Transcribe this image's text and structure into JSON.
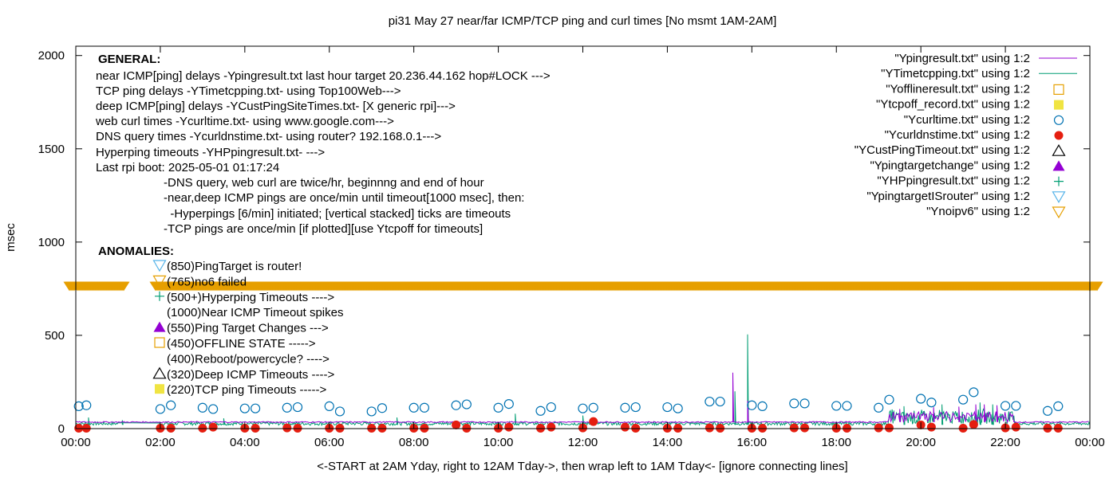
{
  "chart_data": {
    "type": "line",
    "title": "pi31 May 27  near/far ICMP/TCP ping and curl times [No msmt 1AM-2AM]",
    "xlabel": "<-START at 2AM Yday, right to 12AM Tday->, then wrap left to 1AM Tday<- [ignore connecting lines]",
    "ylabel": "msec",
    "xlim": [
      0,
      24
    ],
    "ylim": [
      0,
      2050
    ],
    "x_ticks": [
      {
        "v": 0,
        "label": "00:00"
      },
      {
        "v": 2,
        "label": "02:00"
      },
      {
        "v": 4,
        "label": "04:00"
      },
      {
        "v": 6,
        "label": "06:00"
      },
      {
        "v": 8,
        "label": "08:00"
      },
      {
        "v": 10,
        "label": "10:00"
      },
      {
        "v": 12,
        "label": "12:00"
      },
      {
        "v": 14,
        "label": "14:00"
      },
      {
        "v": 16,
        "label": "16:00"
      },
      {
        "v": 18,
        "label": "18:00"
      },
      {
        "v": 20,
        "label": "20:00"
      },
      {
        "v": 22,
        "label": "22:00"
      },
      {
        "v": 24,
        "label": "00:00"
      }
    ],
    "y_ticks": [
      {
        "v": 0,
        "label": "0"
      },
      {
        "v": 500,
        "label": "500"
      },
      {
        "v": 1000,
        "label": "1000"
      },
      {
        "v": 1500,
        "label": "1500"
      },
      {
        "v": 2000,
        "label": "2000"
      }
    ],
    "grid": false,
    "legend_position": "top-right",
    "colors": {
      "pingresult": "#9400d3",
      "timetcpping": "#009e73",
      "offline": "#e69f00",
      "tcpoff": "#f0e442",
      "curltime": "#0072b2",
      "curldns": "#e51e10",
      "custtimeout": "#000000",
      "targetchange": "#9400d3",
      "hpping": "#009e73",
      "router": "#56b4e9",
      "noipv6": "#e69f00"
    },
    "legend": [
      {
        "label": "\"Ypingresult.txt\" using 1:2",
        "style": "line",
        "color": "#9400d3"
      },
      {
        "label": "\"YTimetcpping.txt\" using 1:2",
        "style": "line",
        "color": "#009e73"
      },
      {
        "label": "\"Yofflineresult.txt\" using 1:2",
        "style": "open-square",
        "color": "#e69f00"
      },
      {
        "label": "\"Ytcpoff_record.txt\" using 1:2",
        "style": "filled-square",
        "color": "#f0e442"
      },
      {
        "label": "\"Ycurltime.txt\" using 1:2",
        "style": "open-circle",
        "color": "#0072b2"
      },
      {
        "label": "\"Ycurldnstime.txt\" using 1:2",
        "style": "filled-circle",
        "color": "#e51e10"
      },
      {
        "label": "\"YCustPingTimeout.txt\" using 1:2",
        "style": "open-triangle",
        "color": "#000000"
      },
      {
        "label": "\"Ypingtargetchange\" using 1:2",
        "style": "filled-triangle",
        "color": "#9400d3"
      },
      {
        "label": "\"YHPpingresult.txt\" using 1:2",
        "style": "plus",
        "color": "#009e73"
      },
      {
        "label": "\"YpingtargetISrouter\" using 1:2",
        "style": "open-down-triangle",
        "color": "#56b4e9"
      },
      {
        "label": "\"Ynoipv6\" using 1:2",
        "style": "open-down-triangle",
        "color": "#e69f00"
      }
    ],
    "general_heading": "GENERAL:",
    "general_lines": [
      "near ICMP[ping] delays -Ypingresult.txt last hour target 20.236.44.162 hop#LOCK --->",
      "TCP ping delays -YTimetcpping.txt- using Top100Web--->",
      "deep ICMP[ping] delays -YCustPingSiteTimes.txt- [X generic rpi]--->",
      "web curl times -Ycurltime.txt- using www.google.com--->",
      "DNS query times -Ycurldnstime.txt- using router? 192.168.0.1--->",
      "Hyperping timeouts -YHPpingresult.txt- --->",
      "Last rpi boot: 2025-05-01 01:17:24"
    ],
    "notes": [
      "-DNS query, web curl are twice/hr, beginnng and end of hour",
      "-near,deep ICMP pings are once/min until timeout[1000 msec], then:",
      "  -Hyperpings [6/min] initiated; [vertical stacked] ticks are timeouts",
      "-TCP pings are once/min [if plotted][use Ytcpoff for timeouts]"
    ],
    "anomalies_heading": "ANOMALIES:",
    "anomalies": [
      {
        "text": "(850)PingTarget is router!",
        "marker": "open-down-triangle",
        "color": "#56b4e9"
      },
      {
        "text": "(765)no6 failed",
        "marker": "open-down-triangle",
        "color": "#e69f00"
      },
      {
        "text": "(500+)Hyperping Timeouts ---->",
        "marker": "plus",
        "color": "#009e73"
      },
      {
        "text": "(1000)Near ICMP Timeout spikes",
        "marker": "none",
        "color": "#9400d3"
      },
      {
        "text": "(550)Ping Target Changes --->",
        "marker": "filled-triangle",
        "color": "#9400d3"
      },
      {
        "text": "(450)OFFLINE STATE ----->",
        "marker": "open-square",
        "color": "#e69f00"
      },
      {
        "text": "(400)Reboot/powercycle? ---->",
        "marker": "none",
        "color": "#000000"
      },
      {
        "text": "(320)Deep ICMP Timeouts ---->",
        "marker": "open-triangle",
        "color": "#000000"
      },
      {
        "text": "(220)TCP ping Timeouts ----->",
        "marker": "filled-square",
        "color": "#f0e442"
      }
    ],
    "noipv6_band": {
      "y": 765,
      "x_start": 0,
      "x_end": 24
    },
    "curl_time_points": [
      {
        "x": 0.07,
        "y": 120
      },
      {
        "x": 0.25,
        "y": 125
      },
      {
        "x": 2.0,
        "y": 105
      },
      {
        "x": 2.25,
        "y": 125
      },
      {
        "x": 3.0,
        "y": 112
      },
      {
        "x": 3.25,
        "y": 105
      },
      {
        "x": 4.0,
        "y": 108
      },
      {
        "x": 4.25,
        "y": 108
      },
      {
        "x": 5.0,
        "y": 112
      },
      {
        "x": 5.25,
        "y": 115
      },
      {
        "x": 6.0,
        "y": 120
      },
      {
        "x": 6.25,
        "y": 92
      },
      {
        "x": 7.0,
        "y": 92
      },
      {
        "x": 7.25,
        "y": 110
      },
      {
        "x": 8.0,
        "y": 112
      },
      {
        "x": 8.25,
        "y": 112
      },
      {
        "x": 9.0,
        "y": 125
      },
      {
        "x": 9.25,
        "y": 130
      },
      {
        "x": 10.0,
        "y": 112
      },
      {
        "x": 10.25,
        "y": 132
      },
      {
        "x": 11.0,
        "y": 95
      },
      {
        "x": 11.25,
        "y": 115
      },
      {
        "x": 12.0,
        "y": 108
      },
      {
        "x": 12.25,
        "y": 112
      },
      {
        "x": 13.0,
        "y": 112
      },
      {
        "x": 13.25,
        "y": 115
      },
      {
        "x": 14.0,
        "y": 115
      },
      {
        "x": 14.25,
        "y": 108
      },
      {
        "x": 15.0,
        "y": 145
      },
      {
        "x": 15.25,
        "y": 145
      },
      {
        "x": 16.0,
        "y": 125
      },
      {
        "x": 16.25,
        "y": 120
      },
      {
        "x": 17.0,
        "y": 135
      },
      {
        "x": 17.25,
        "y": 135
      },
      {
        "x": 18.0,
        "y": 122
      },
      {
        "x": 18.25,
        "y": 122
      },
      {
        "x": 19.0,
        "y": 112
      },
      {
        "x": 19.25,
        "y": 155
      },
      {
        "x": 20.0,
        "y": 160
      },
      {
        "x": 20.25,
        "y": 140
      },
      {
        "x": 21.0,
        "y": 155
      },
      {
        "x": 21.25,
        "y": 195
      },
      {
        "x": 22.0,
        "y": 122
      },
      {
        "x": 22.25,
        "y": 122
      },
      {
        "x": 23.0,
        "y": 95
      },
      {
        "x": 23.25,
        "y": 120
      }
    ],
    "curl_dns_points": [
      {
        "x": 0.07,
        "y": 2
      },
      {
        "x": 0.25,
        "y": 2
      },
      {
        "x": 2.0,
        "y": 2
      },
      {
        "x": 2.25,
        "y": 2
      },
      {
        "x": 3.0,
        "y": 2
      },
      {
        "x": 3.25,
        "y": 8
      },
      {
        "x": 4.0,
        "y": 2
      },
      {
        "x": 4.25,
        "y": 2
      },
      {
        "x": 5.0,
        "y": 4
      },
      {
        "x": 5.25,
        "y": 2
      },
      {
        "x": 6.0,
        "y": 2
      },
      {
        "x": 6.25,
        "y": 2
      },
      {
        "x": 7.0,
        "y": 2
      },
      {
        "x": 7.25,
        "y": 2
      },
      {
        "x": 8.0,
        "y": 2
      },
      {
        "x": 8.25,
        "y": 2
      },
      {
        "x": 9.0,
        "y": 20
      },
      {
        "x": 9.25,
        "y": 2
      },
      {
        "x": 10.0,
        "y": 2
      },
      {
        "x": 10.25,
        "y": 8
      },
      {
        "x": 11.0,
        "y": 2
      },
      {
        "x": 11.25,
        "y": 8
      },
      {
        "x": 12.0,
        "y": 4
      },
      {
        "x": 12.25,
        "y": 38
      },
      {
        "x": 13.0,
        "y": 8
      },
      {
        "x": 13.25,
        "y": 2
      },
      {
        "x": 14.0,
        "y": 2
      },
      {
        "x": 14.25,
        "y": 2
      },
      {
        "x": 15.0,
        "y": 4
      },
      {
        "x": 15.25,
        "y": 2
      },
      {
        "x": 16.0,
        "y": 2
      },
      {
        "x": 16.25,
        "y": 2
      },
      {
        "x": 17.0,
        "y": 4
      },
      {
        "x": 17.25,
        "y": 4
      },
      {
        "x": 18.0,
        "y": 2
      },
      {
        "x": 18.25,
        "y": 2
      },
      {
        "x": 19.0,
        "y": 4
      },
      {
        "x": 19.25,
        "y": 4
      },
      {
        "x": 20.0,
        "y": 20
      },
      {
        "x": 20.25,
        "y": 8
      },
      {
        "x": 21.0,
        "y": 2
      },
      {
        "x": 21.25,
        "y": 22
      },
      {
        "x": 22.0,
        "y": 4
      },
      {
        "x": 22.25,
        "y": 8
      },
      {
        "x": 23.0,
        "y": 2
      },
      {
        "x": 23.25,
        "y": 2
      }
    ],
    "ping_spikes": [
      {
        "x": 15.55,
        "y": 300
      },
      {
        "x": 15.9,
        "y": 150
      },
      {
        "x": 19.5,
        "y": 105
      },
      {
        "x": 20.3,
        "y": 115
      },
      {
        "x": 20.9,
        "y": 118
      },
      {
        "x": 21.3,
        "y": 130
      },
      {
        "x": 21.5,
        "y": 130
      },
      {
        "x": 21.8,
        "y": 125
      }
    ],
    "tcp_spikes": [
      {
        "x": 0.3,
        "y": 60
      },
      {
        "x": 1.1,
        "y": 45
      },
      {
        "x": 3.5,
        "y": 55
      },
      {
        "x": 7.6,
        "y": 60
      },
      {
        "x": 10.4,
        "y": 80
      },
      {
        "x": 12.0,
        "y": 70
      },
      {
        "x": 15.6,
        "y": 200
      },
      {
        "x": 15.9,
        "y": 505
      },
      {
        "x": 19.6,
        "y": 120
      },
      {
        "x": 20.5,
        "y": 130
      },
      {
        "x": 21.4,
        "y": 140
      },
      {
        "x": 21.7,
        "y": 130
      }
    ]
  }
}
